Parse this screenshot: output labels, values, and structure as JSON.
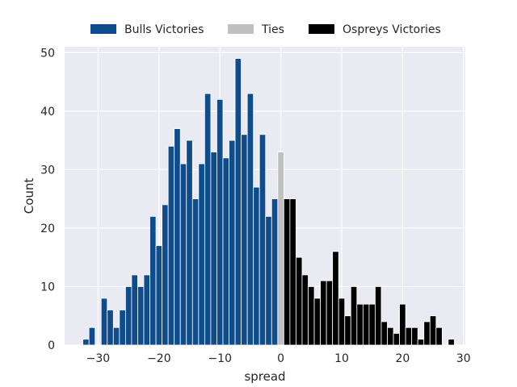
{
  "chart_data": {
    "type": "bar",
    "xlabel": "spread",
    "ylabel": "Count",
    "xlim": [
      -35.5,
      30.3
    ],
    "ylim": [
      0,
      51
    ],
    "xticks": [
      -30,
      -20,
      -10,
      0,
      10,
      20,
      30
    ],
    "yticks": [
      0,
      10,
      20,
      30,
      40,
      50
    ],
    "xtick_labels": [
      "−30",
      "−20",
      "−10",
      "0",
      "10",
      "20",
      "30"
    ],
    "ytick_labels": [
      "0",
      "10",
      "20",
      "30",
      "40",
      "50"
    ],
    "grid": true,
    "legend_placement": "top-center",
    "series": [
      {
        "name": "Bulls Victories",
        "color": "#0f4c8c",
        "bins": [
          {
            "x": -32.5,
            "value": 1
          },
          {
            "x": -31.5,
            "value": 3
          },
          {
            "x": -30.5,
            "value": 0
          },
          {
            "x": -29.5,
            "value": 8
          },
          {
            "x": -28.5,
            "value": 6
          },
          {
            "x": -27.5,
            "value": 3
          },
          {
            "x": -26.5,
            "value": 6
          },
          {
            "x": -25.5,
            "value": 10
          },
          {
            "x": -24.5,
            "value": 12
          },
          {
            "x": -23.5,
            "value": 10
          },
          {
            "x": -22.5,
            "value": 12
          },
          {
            "x": -21.5,
            "value": 22
          },
          {
            "x": -20.5,
            "value": 17
          },
          {
            "x": -19.5,
            "value": 24
          },
          {
            "x": -18.5,
            "value": 34
          },
          {
            "x": -17.5,
            "value": 37
          },
          {
            "x": -16.5,
            "value": 31
          },
          {
            "x": -15.5,
            "value": 35
          },
          {
            "x": -14.5,
            "value": 25
          },
          {
            "x": -13.5,
            "value": 31
          },
          {
            "x": -12.5,
            "value": 43
          },
          {
            "x": -11.5,
            "value": 33
          },
          {
            "x": -10.5,
            "value": 42
          },
          {
            "x": -9.5,
            "value": 32
          },
          {
            "x": -8.5,
            "value": 35
          },
          {
            "x": -7.5,
            "value": 49
          },
          {
            "x": -6.5,
            "value": 36
          },
          {
            "x": -5.5,
            "value": 43
          },
          {
            "x": -4.5,
            "value": 27
          },
          {
            "x": -3.5,
            "value": 36
          },
          {
            "x": -2.5,
            "value": 22
          },
          {
            "x": -1.5,
            "value": 25
          }
        ]
      },
      {
        "name": "Ties",
        "color": "#c0c0c0",
        "bins": [
          {
            "x": -0.5,
            "value": 33
          }
        ]
      },
      {
        "name": "Ospreys Victories",
        "color": "#000000",
        "bins": [
          {
            "x": 0.5,
            "value": 25
          },
          {
            "x": 1.5,
            "value": 25
          },
          {
            "x": 2.5,
            "value": 15
          },
          {
            "x": 3.5,
            "value": 12
          },
          {
            "x": 4.5,
            "value": 10
          },
          {
            "x": 5.5,
            "value": 8
          },
          {
            "x": 6.5,
            "value": 11
          },
          {
            "x": 7.5,
            "value": 11
          },
          {
            "x": 8.5,
            "value": 16
          },
          {
            "x": 9.5,
            "value": 8
          },
          {
            "x": 10.5,
            "value": 5
          },
          {
            "x": 11.5,
            "value": 10
          },
          {
            "x": 12.5,
            "value": 7
          },
          {
            "x": 13.5,
            "value": 7
          },
          {
            "x": 14.5,
            "value": 7
          },
          {
            "x": 15.5,
            "value": 10
          },
          {
            "x": 16.5,
            "value": 4
          },
          {
            "x": 17.5,
            "value": 3
          },
          {
            "x": 18.5,
            "value": 2
          },
          {
            "x": 19.5,
            "value": 7
          },
          {
            "x": 20.5,
            "value": 3
          },
          {
            "x": 21.5,
            "value": 3
          },
          {
            "x": 22.5,
            "value": 1
          },
          {
            "x": 23.5,
            "value": 4
          },
          {
            "x": 24.5,
            "value": 5
          },
          {
            "x": 25.5,
            "value": 3
          },
          {
            "x": 26.5,
            "value": 0
          },
          {
            "x": 27.5,
            "value": 1
          }
        ]
      }
    ]
  }
}
